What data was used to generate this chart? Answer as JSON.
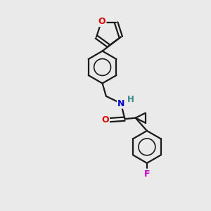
{
  "background_color": "#eaeaea",
  "bond_color": "#1a1a1a",
  "label_colors": {
    "O": "#dd0000",
    "N": "#0000cc",
    "H": "#338888",
    "F": "#cc00cc"
  },
  "line_width": 1.6,
  "figsize": [
    3.0,
    3.0
  ],
  "dpi": 100,
  "xlim": [
    0,
    10
  ],
  "ylim": [
    0,
    10
  ]
}
